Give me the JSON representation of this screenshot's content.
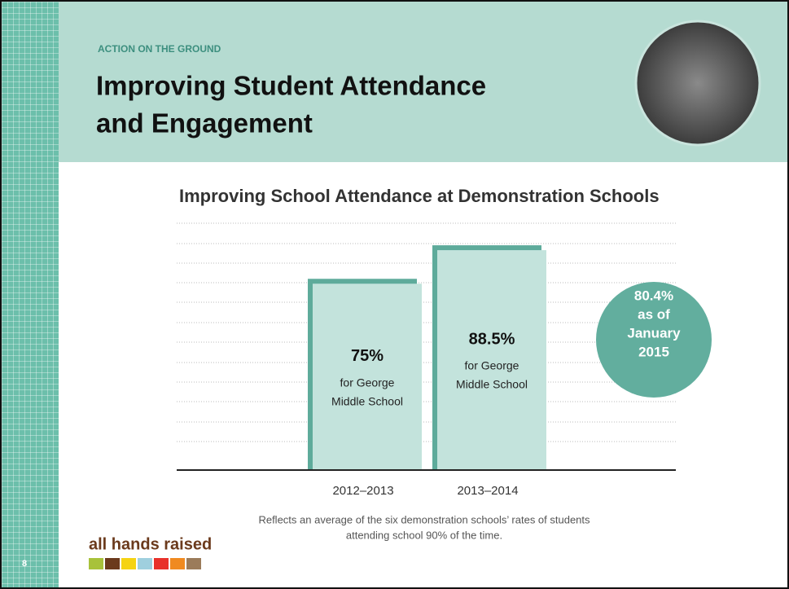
{
  "header": {
    "kicker": "ACTION ON THE GROUND",
    "title_lines": [
      "Improving Student Attendance",
      "and Engagement"
    ]
  },
  "chart_data": {
    "type": "bar",
    "title": "Improving School Attendance at Demonstration Schools",
    "categories": [
      "2012–2013",
      "2013–2014"
    ],
    "values": [
      75,
      88.5
    ],
    "value_labels": [
      "75%",
      "88.5%"
    ],
    "bar_notes": [
      [
        "for George",
        "Middle School"
      ],
      [
        "for George",
        "Middle School"
      ]
    ],
    "color": "#c3e3dc",
    "edge_color": "#5eab9b",
    "ylim": [
      0,
      100
    ],
    "annotation": [
      "80.4%",
      "as of",
      "January",
      "2015"
    ],
    "annotation_color": "#62ae9e",
    "footnote": [
      "Reflects an average of the six demonstration schools’ rates of students",
      "attending school 90% of the time."
    ]
  },
  "footer": {
    "page": "8",
    "logo": "all hands raised"
  }
}
